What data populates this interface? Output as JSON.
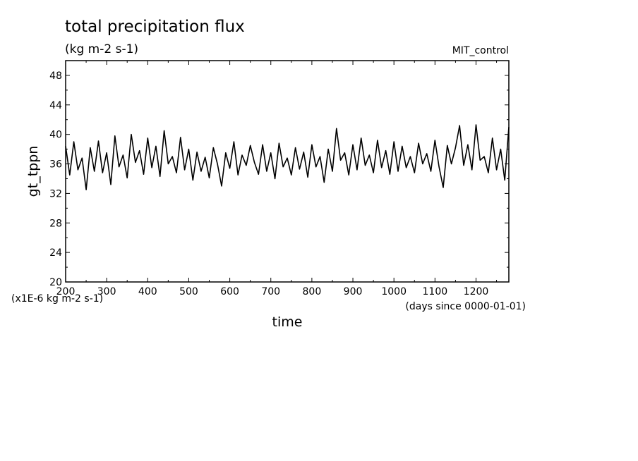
{
  "chart_data": {
    "type": "line",
    "title": "total precipitation flux",
    "units": "(kg m-2 s-1)",
    "dataset_label": "MIT_control",
    "xlabel": "time",
    "x_units_note": "(days since 0000-01-01)",
    "ylabel": "gt_tppn",
    "y_scale_note": "(x1E-6 kg m-2 s-1)",
    "xlim": [
      200,
      1280
    ],
    "ylim": [
      20,
      50
    ],
    "x_ticks": [
      200,
      300,
      400,
      500,
      600,
      700,
      800,
      900,
      1000,
      1100,
      1200
    ],
    "x_tick_labels": [
      "200",
      "300",
      "400",
      "500",
      "600",
      "700",
      "800",
      "900",
      "1000",
      "1100",
      "1200"
    ],
    "y_ticks": [
      20,
      24,
      28,
      32,
      36,
      40,
      44,
      48
    ],
    "y_tick_labels": [
      "20",
      "24",
      "28",
      "32",
      "36",
      "40",
      "44",
      "48"
    ],
    "series": [
      {
        "x": [
          200,
          210,
          220,
          230,
          240,
          250,
          260,
          270,
          280,
          290,
          300,
          310,
          320,
          330,
          340,
          350,
          360,
          370,
          380,
          390,
          400,
          410,
          420,
          430,
          440,
          450,
          460,
          470,
          480,
          490,
          500,
          510,
          520,
          530,
          540,
          550,
          560,
          570,
          580,
          590,
          600,
          610,
          620,
          630,
          640,
          650,
          660,
          670,
          680,
          690,
          700,
          710,
          720,
          730,
          740,
          750,
          760,
          770,
          780,
          790,
          800,
          810,
          820,
          830,
          840,
          850,
          860,
          870,
          880,
          890,
          900,
          910,
          920,
          930,
          940,
          950,
          960,
          970,
          980,
          990,
          1000,
          1010,
          1020,
          1030,
          1040,
          1050,
          1060,
          1070,
          1080,
          1090,
          1100,
          1110,
          1120,
          1130,
          1140,
          1150,
          1160,
          1170,
          1180,
          1190,
          1200,
          1210,
          1220,
          1230,
          1240,
          1250,
          1260,
          1270,
          1280
        ],
        "y": [
          38.4,
          34.5,
          39.0,
          35.2,
          36.8,
          32.5,
          38.2,
          35.0,
          39.1,
          34.8,
          37.5,
          33.2,
          39.8,
          35.6,
          37.2,
          34.1,
          40.0,
          36.2,
          37.8,
          34.6,
          39.5,
          35.5,
          38.4,
          34.3,
          40.5,
          36.0,
          37.0,
          34.8,
          39.6,
          35.2,
          38.0,
          33.8,
          37.6,
          35.0,
          36.9,
          34.1,
          38.2,
          36.0,
          33.0,
          37.5,
          35.4,
          39.0,
          34.5,
          37.2,
          35.8,
          38.5,
          36.2,
          34.6,
          38.6,
          35.0,
          37.5,
          34.0,
          38.8,
          35.6,
          36.8,
          34.5,
          38.2,
          35.3,
          37.6,
          34.2,
          38.6,
          35.6,
          37.0,
          33.5,
          38.0,
          35.0,
          40.8,
          36.5,
          37.5,
          34.5,
          38.6,
          35.2,
          39.5,
          35.8,
          37.2,
          34.8,
          39.2,
          35.5,
          37.8,
          34.6,
          39.0,
          35.0,
          38.4,
          35.5,
          37.0,
          34.8,
          38.8,
          36.0,
          37.4,
          35.0,
          39.2,
          35.6,
          32.8,
          38.5,
          36.0,
          38.2,
          41.2,
          35.8,
          38.6,
          35.2,
          41.3,
          36.5,
          37.0,
          34.8,
          39.5,
          35.2,
          38.0,
          33.8,
          41.0
        ]
      }
    ]
  }
}
